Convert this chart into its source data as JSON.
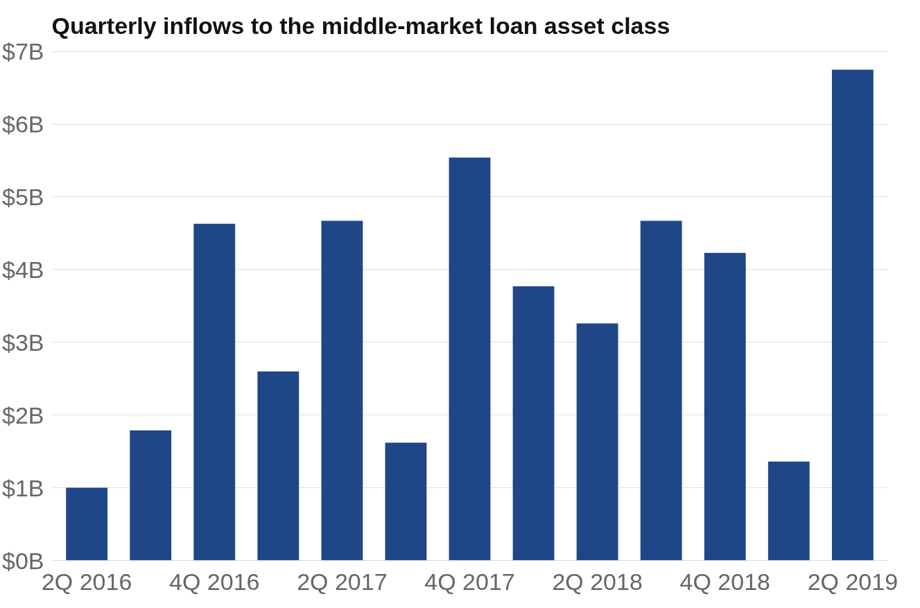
{
  "chart_data": {
    "type": "bar",
    "title": "Quarterly inflows to the middle-market loan asset class",
    "categories": [
      "2Q 2016",
      null,
      "4Q 2016",
      null,
      "2Q 2017",
      null,
      "4Q 2017",
      null,
      "2Q 2018",
      null,
      "4Q 2018",
      null,
      "2Q 2019"
    ],
    "values": [
      1.0,
      1.79,
      4.63,
      2.6,
      4.67,
      1.62,
      5.54,
      3.77,
      3.26,
      4.67,
      4.23,
      1.36,
      6.75
    ],
    "color": "#1f4788",
    "ylim": [
      0,
      7
    ],
    "yticks": [
      {
        "value": 0,
        "label": "$0B"
      },
      {
        "value": 1,
        "label": "$1B"
      },
      {
        "value": 2,
        "label": "$2B"
      },
      {
        "value": 3,
        "label": "$3B"
      },
      {
        "value": 4,
        "label": "$4B"
      },
      {
        "value": 5,
        "label": "$5B"
      },
      {
        "value": 6,
        "label": "$6B"
      },
      {
        "value": 7,
        "label": "$7B"
      }
    ],
    "grid": "y"
  }
}
